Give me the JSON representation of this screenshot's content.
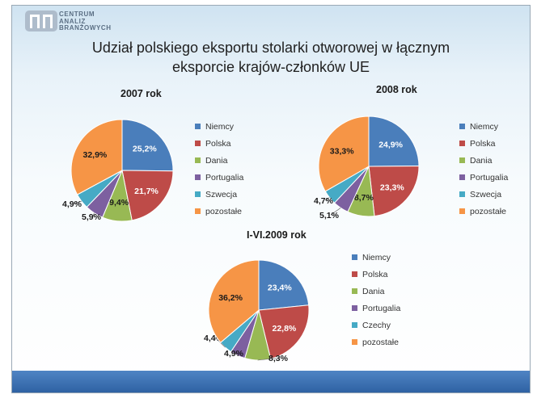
{
  "header": {
    "logo_lines": [
      "CENTRUM",
      "ANALIZ",
      "BRANŻOWYCH"
    ],
    "title_lines": [
      "Udział polskiego eksportu stolarki otworowej w łącznym",
      "eksporcie krajów-członków UE"
    ]
  },
  "colors": {
    "Niemcy": "#4a7ebb",
    "Polska": "#be4b48",
    "Dania": "#98b954",
    "Portugalia": "#7d60a0",
    "Szwecja": "#46aac5",
    "Czechy": "#46aac5",
    "pozostałe": "#f69546"
  },
  "chart_data": [
    {
      "type": "pie",
      "title": "2007 rok",
      "labels": [
        "Niemcy",
        "Polska",
        "Dania",
        "Portugalia",
        "Szwecja",
        "pozostałe"
      ],
      "values": [
        25.2,
        21.7,
        9.4,
        5.9,
        4.9,
        32.9
      ],
      "value_labels": [
        "25,2%",
        "21,7%",
        "9,4%",
        "5,9%",
        "4,9%",
        "32,9%"
      ],
      "legend": "right"
    },
    {
      "type": "pie",
      "title": "2008 rok",
      "labels": [
        "Niemcy",
        "Polska",
        "Dania",
        "Portugalia",
        "Szwecja",
        "pozostałe"
      ],
      "values": [
        24.9,
        23.3,
        8.7,
        5.1,
        4.7,
        33.3
      ],
      "value_labels": [
        "24,9%",
        "23,3%",
        "8,7%",
        "5,1%",
        "4,7%",
        "33,3%"
      ],
      "legend": "right"
    },
    {
      "type": "pie",
      "title": "I-VI.2009 rok",
      "labels": [
        "Niemcy",
        "Polska",
        "Dania",
        "Portugalia",
        "Czechy",
        "pozostałe"
      ],
      "values": [
        23.4,
        22.8,
        8.3,
        4.9,
        4.4,
        36.2
      ],
      "value_labels": [
        "23,4%",
        "22,8%",
        "8,3%",
        "4,9%",
        "4,4%",
        "36,2%"
      ],
      "legend": "right"
    }
  ]
}
